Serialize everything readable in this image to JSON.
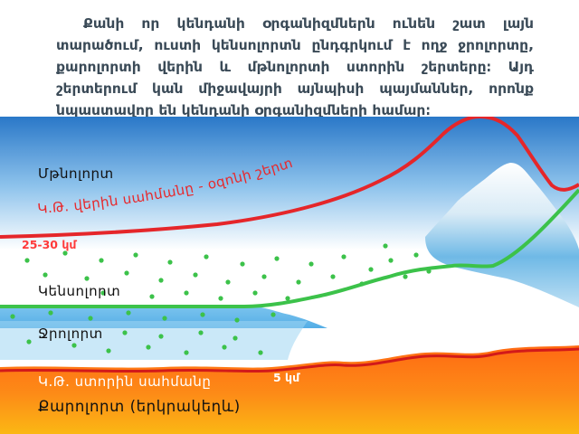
{
  "paragraph": "Քանի որ կենդանի օրգանիզմներն ունեն շատ լայն տարածում, ուստի կենսոլորտն ընդգրկում է ողջ ջրոլորտը, քարոլորտի վերին և մթնոլորտի ստորին շերտերը։ Այդ շերտերում կան միջավայրի այնպիսի պայմաններ, որոնք նպաստավոր են կենդանի օրգանիզմների համար։",
  "diagram": {
    "atmosphere_label": "Մթնոլորտ",
    "upper_boundary_label": "Կ.Թ. վերին սահմանը - օզոնի շերտ",
    "upper_height_label": "25-30 կմ",
    "biosphere_label": "Կենսոլորտ",
    "hydrosphere_label": "Ջրոլորտ",
    "lower_boundary_label": "Կ.Թ. ստորին սահմանը",
    "lower_depth_label": "5 կմ",
    "lithosphere_label": "Քարոլորտ (երկրակեղև)"
  },
  "colors": {
    "sky_top": "#2a78c8",
    "sky_bottom": "#ffffff",
    "ozone_line": "#e5262a",
    "biosphere_line": "#3cc24a",
    "organism_dots": "#3cc24a",
    "water": "#5fb6ea",
    "crust_top": "#ff6a13",
    "crust_bottom": "#fbb714",
    "text_dark": "#3a4a57"
  }
}
